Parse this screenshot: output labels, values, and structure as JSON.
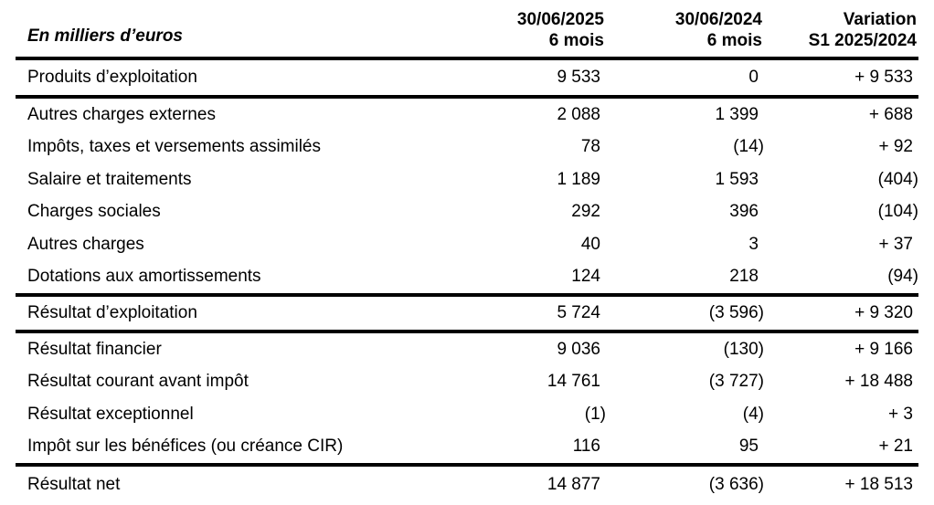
{
  "unit_label": "En milliers d’euros",
  "columns": {
    "c2025": {
      "line1": "30/06/2025",
      "line2": "6 mois"
    },
    "c2024": {
      "line1": "30/06/2024",
      "line2": "6 mois"
    },
    "variation": {
      "line1": "Variation",
      "line2": "S1 2025/2024"
    }
  },
  "rows": [
    {
      "label": "Produits d’exploitation",
      "c2025": "9 533",
      "c2024": "0",
      "variation": "+ 9 533"
    },
    {
      "label": "Autres charges externes",
      "c2025": "2 088",
      "c2024": "1 399",
      "variation": "+ 688"
    },
    {
      "label": "Impôts, taxes et versements assimilés",
      "c2025": "78",
      "c2024": "(14)",
      "variation": "+ 92"
    },
    {
      "label": "Salaire et traitements",
      "c2025": "1 189",
      "c2024": "1 593",
      "variation": "(404)"
    },
    {
      "label": "Charges sociales",
      "c2025": "292",
      "c2024": "396",
      "variation": "(104)"
    },
    {
      "label": "Autres charges",
      "c2025": "40",
      "c2024": "3",
      "variation": "+ 37"
    },
    {
      "label": "Dotations aux amortissements",
      "c2025": "124",
      "c2024": "218",
      "variation": "(94)"
    },
    {
      "label": "Résultat d’exploitation",
      "c2025": "5 724",
      "c2024": "(3 596)",
      "variation": "+ 9 320"
    },
    {
      "label": "Résultat financier",
      "c2025": "9 036",
      "c2024": "(130)",
      "variation": "+ 9 166"
    },
    {
      "label": "Résultat courant avant impôt",
      "c2025": "14 761",
      "c2024": "(3 727)",
      "variation": "+ 18 488"
    },
    {
      "label": "Résultat exceptionnel",
      "c2025": "(1)",
      "c2024": "(4)",
      "variation": "+ 3"
    },
    {
      "label": "Impôt sur les bénéfices (ou créance CIR)",
      "c2025": "116",
      "c2024": "95",
      "variation": "+ 21"
    },
    {
      "label": "Résultat net",
      "c2025": "14 877",
      "c2024": "(3 636)",
      "variation": "+ 18 513"
    }
  ],
  "colors": {
    "text": "#000000",
    "rule": "#000000",
    "background": "#ffffff"
  }
}
